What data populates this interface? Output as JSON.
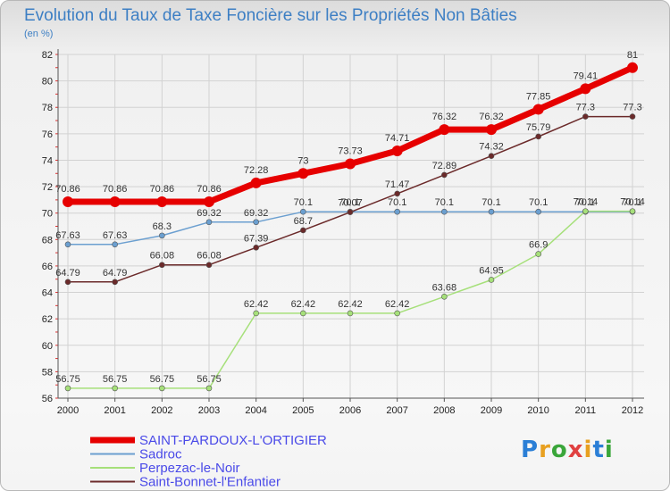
{
  "chart_data": {
    "type": "line",
    "title": "Evolution du Taux de Taxe Foncière sur les Propriétés Non Bâties",
    "ylabel": "(en %)",
    "xlabel": "",
    "categories": [
      "2000",
      "2001",
      "2002",
      "2003",
      "2004",
      "2005",
      "2006",
      "2007",
      "2008",
      "2009",
      "2010",
      "2011",
      "2012"
    ],
    "ylim": [
      56,
      82
    ],
    "yticks": [
      56,
      58,
      60,
      62,
      64,
      66,
      68,
      70,
      72,
      74,
      76,
      78,
      80,
      82
    ],
    "series": [
      {
        "name": "SAINT-PARDOUX-L'ORTIGIER",
        "color": "#e60000",
        "lineWidth": 7,
        "markerRadius": 6,
        "values": [
          70.86,
          70.86,
          70.86,
          70.86,
          72.28,
          73,
          73.73,
          74.71,
          76.32,
          76.32,
          77.85,
          79.41,
          81
        ],
        "labels": [
          "70.86",
          "70.86",
          "70.86",
          "70.86",
          "72.28",
          "73",
          "73.73",
          "74.71",
          "76.32",
          "76.32",
          "77.85",
          "79.41",
          "81"
        ]
      },
      {
        "name": "Sadroc",
        "color": "#6b9fd0",
        "lineWidth": 1.5,
        "markerRadius": 3,
        "values": [
          67.63,
          67.63,
          68.3,
          69.32,
          69.32,
          70.1,
          70.1,
          70.1,
          70.1,
          70.1,
          70.1,
          70.1,
          70.1
        ],
        "labels": [
          "67.63",
          "67.63",
          "68.3",
          "69.32",
          "69.32",
          "70.1",
          "70.1",
          "70.1",
          "70.1",
          "70.1",
          "70.1",
          "70.1",
          "70.1"
        ]
      },
      {
        "name": "Perpezac-le-Noir",
        "color": "#a6e07a",
        "lineWidth": 1.5,
        "markerRadius": 3,
        "values": [
          56.75,
          56.75,
          56.75,
          56.75,
          62.42,
          62.42,
          62.42,
          62.42,
          63.68,
          64.95,
          66.9,
          70.14,
          70.14
        ],
        "labels": [
          "56.75",
          "56.75",
          "56.75",
          "56.75",
          "62.42",
          "62.42",
          "62.42",
          "62.42",
          "63.68",
          "64.95",
          "66.9",
          "70.14",
          "70.14"
        ]
      },
      {
        "name": "Saint-Bonnet-l'Enfantier",
        "color": "#6b2a2a",
        "lineWidth": 1.5,
        "markerRadius": 3,
        "values": [
          64.79,
          64.79,
          66.08,
          66.08,
          67.39,
          68.7,
          70.07,
          71.47,
          72.89,
          74.32,
          75.79,
          77.3,
          77.3
        ],
        "labels": [
          "64.79",
          "64.79",
          "66.08",
          "66.08",
          "67.39",
          "68.7",
          "70.07",
          "71.47",
          "72.89",
          "74.32",
          "75.79",
          "77.3",
          "77.3"
        ]
      }
    ],
    "legend_position": "bottom-left"
  },
  "branding": {
    "logo_text": "Proxiti",
    "letter_colors": [
      "#2b7fd6",
      "#e8a020",
      "#3aa63a",
      "#e04040",
      "#e8a020",
      "#2b7fd6",
      "#3aa63a"
    ]
  }
}
